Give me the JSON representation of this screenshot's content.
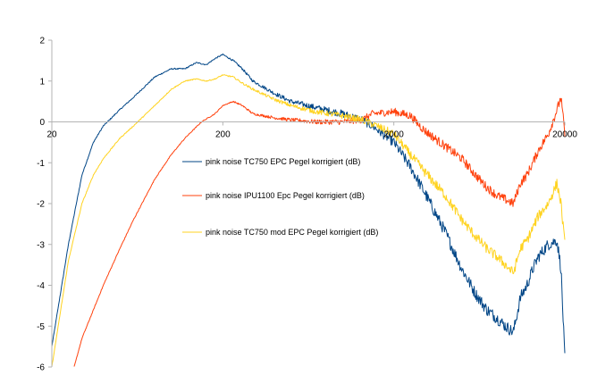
{
  "chart_data": {
    "type": "line",
    "title": "",
    "xlabel": "",
    "ylabel": "",
    "x_scale": "log",
    "xlim": [
      20,
      20000
    ],
    "ylim": [
      -6,
      2
    ],
    "grid": false,
    "legend_position": "center",
    "x_ticks": [
      {
        "value": 20,
        "label": "20"
      },
      {
        "value": 200,
        "label": "200"
      },
      {
        "value": 2000,
        "label": "2000"
      },
      {
        "value": 20000,
        "label": "20000"
      }
    ],
    "y_ticks": [
      {
        "value": 2,
        "label": "2"
      },
      {
        "value": 1,
        "label": "1"
      },
      {
        "value": 0,
        "label": "0"
      },
      {
        "value": -1,
        "label": "-1"
      },
      {
        "value": -2,
        "label": "-2"
      },
      {
        "value": -3,
        "label": "-3"
      },
      {
        "value": -4,
        "label": "-4"
      },
      {
        "value": -5,
        "label": "-5"
      },
      {
        "value": -6,
        "label": "-6"
      }
    ],
    "series": [
      {
        "name": "pink noise TC750 EPC Pegel korrigiert (dB)",
        "color": "#004586",
        "noise": 0.12,
        "x": [
          20,
          25,
          30,
          35,
          40,
          50,
          60,
          80,
          100,
          120,
          140,
          160,
          180,
          200,
          230,
          260,
          300,
          400,
          500,
          700,
          1000,
          1300,
          1500,
          2000,
          2500,
          3000,
          4000,
          5000,
          6000,
          7000,
          8000,
          9000,
          10000,
          11000,
          12000,
          13000,
          14000,
          16000,
          18000,
          19000,
          20000
        ],
        "y": [
          -5.5,
          -3.0,
          -1.3,
          -0.5,
          -0.1,
          0.3,
          0.6,
          1.1,
          1.3,
          1.3,
          1.45,
          1.4,
          1.55,
          1.65,
          1.5,
          1.3,
          1.0,
          0.7,
          0.5,
          0.35,
          0.2,
          0.05,
          -0.1,
          -0.5,
          -1.1,
          -1.7,
          -2.7,
          -3.6,
          -4.2,
          -4.6,
          -4.8,
          -5.0,
          -5.15,
          -4.3,
          -4.0,
          -3.6,
          -3.3,
          -3.0,
          -2.9,
          -3.6,
          -5.8
        ]
      },
      {
        "name": "pink noise IPU1100 Epc Pegel korrigiert (dB)",
        "color": "#ff420e",
        "noise": 0.09,
        "x": [
          27,
          30,
          40,
          50,
          60,
          80,
          100,
          120,
          150,
          180,
          200,
          230,
          260,
          300,
          400,
          500,
          700,
          1000,
          1300,
          1500,
          2000,
          2500,
          3000,
          4000,
          5000,
          6000,
          7000,
          8000,
          9000,
          10000,
          11000,
          12000,
          13000,
          14000,
          16000,
          18000,
          19000,
          20000
        ],
        "y": [
          -6.0,
          -5.3,
          -4.0,
          -3.1,
          -2.4,
          -1.4,
          -0.8,
          -0.4,
          0.0,
          0.2,
          0.4,
          0.5,
          0.4,
          0.2,
          0.1,
          0.05,
          0.0,
          0.0,
          0.05,
          0.2,
          0.25,
          0.15,
          -0.2,
          -0.6,
          -0.9,
          -1.3,
          -1.6,
          -1.8,
          -1.9,
          -2.0,
          -1.5,
          -1.3,
          -1.0,
          -0.7,
          -0.3,
          0.3,
          0.6,
          -0.3
        ]
      },
      {
        "name": "pink noise TC750 mod EPC Pegel korrigiert (dB)",
        "color": "#ffd320",
        "noise": 0.1,
        "x": [
          20,
          25,
          30,
          35,
          40,
          50,
          60,
          80,
          100,
          120,
          140,
          160,
          180,
          200,
          230,
          260,
          300,
          400,
          500,
          700,
          1000,
          1300,
          1500,
          2000,
          2500,
          3000,
          4000,
          5000,
          6000,
          7000,
          8000,
          9000,
          10000,
          11000,
          12000,
          13000,
          14000,
          16000,
          18000,
          19000,
          20000
        ],
        "y": [
          -6.0,
          -3.4,
          -2.0,
          -1.3,
          -0.9,
          -0.4,
          -0.1,
          0.4,
          0.8,
          1.0,
          1.05,
          1.0,
          1.05,
          1.15,
          1.1,
          0.95,
          0.8,
          0.55,
          0.4,
          0.25,
          0.15,
          0.05,
          -0.05,
          -0.3,
          -0.8,
          -1.2,
          -1.8,
          -2.4,
          -2.8,
          -3.1,
          -3.3,
          -3.5,
          -3.7,
          -3.1,
          -2.9,
          -2.6,
          -2.3,
          -2.0,
          -1.5,
          -2.0,
          -3.0
        ]
      }
    ]
  }
}
